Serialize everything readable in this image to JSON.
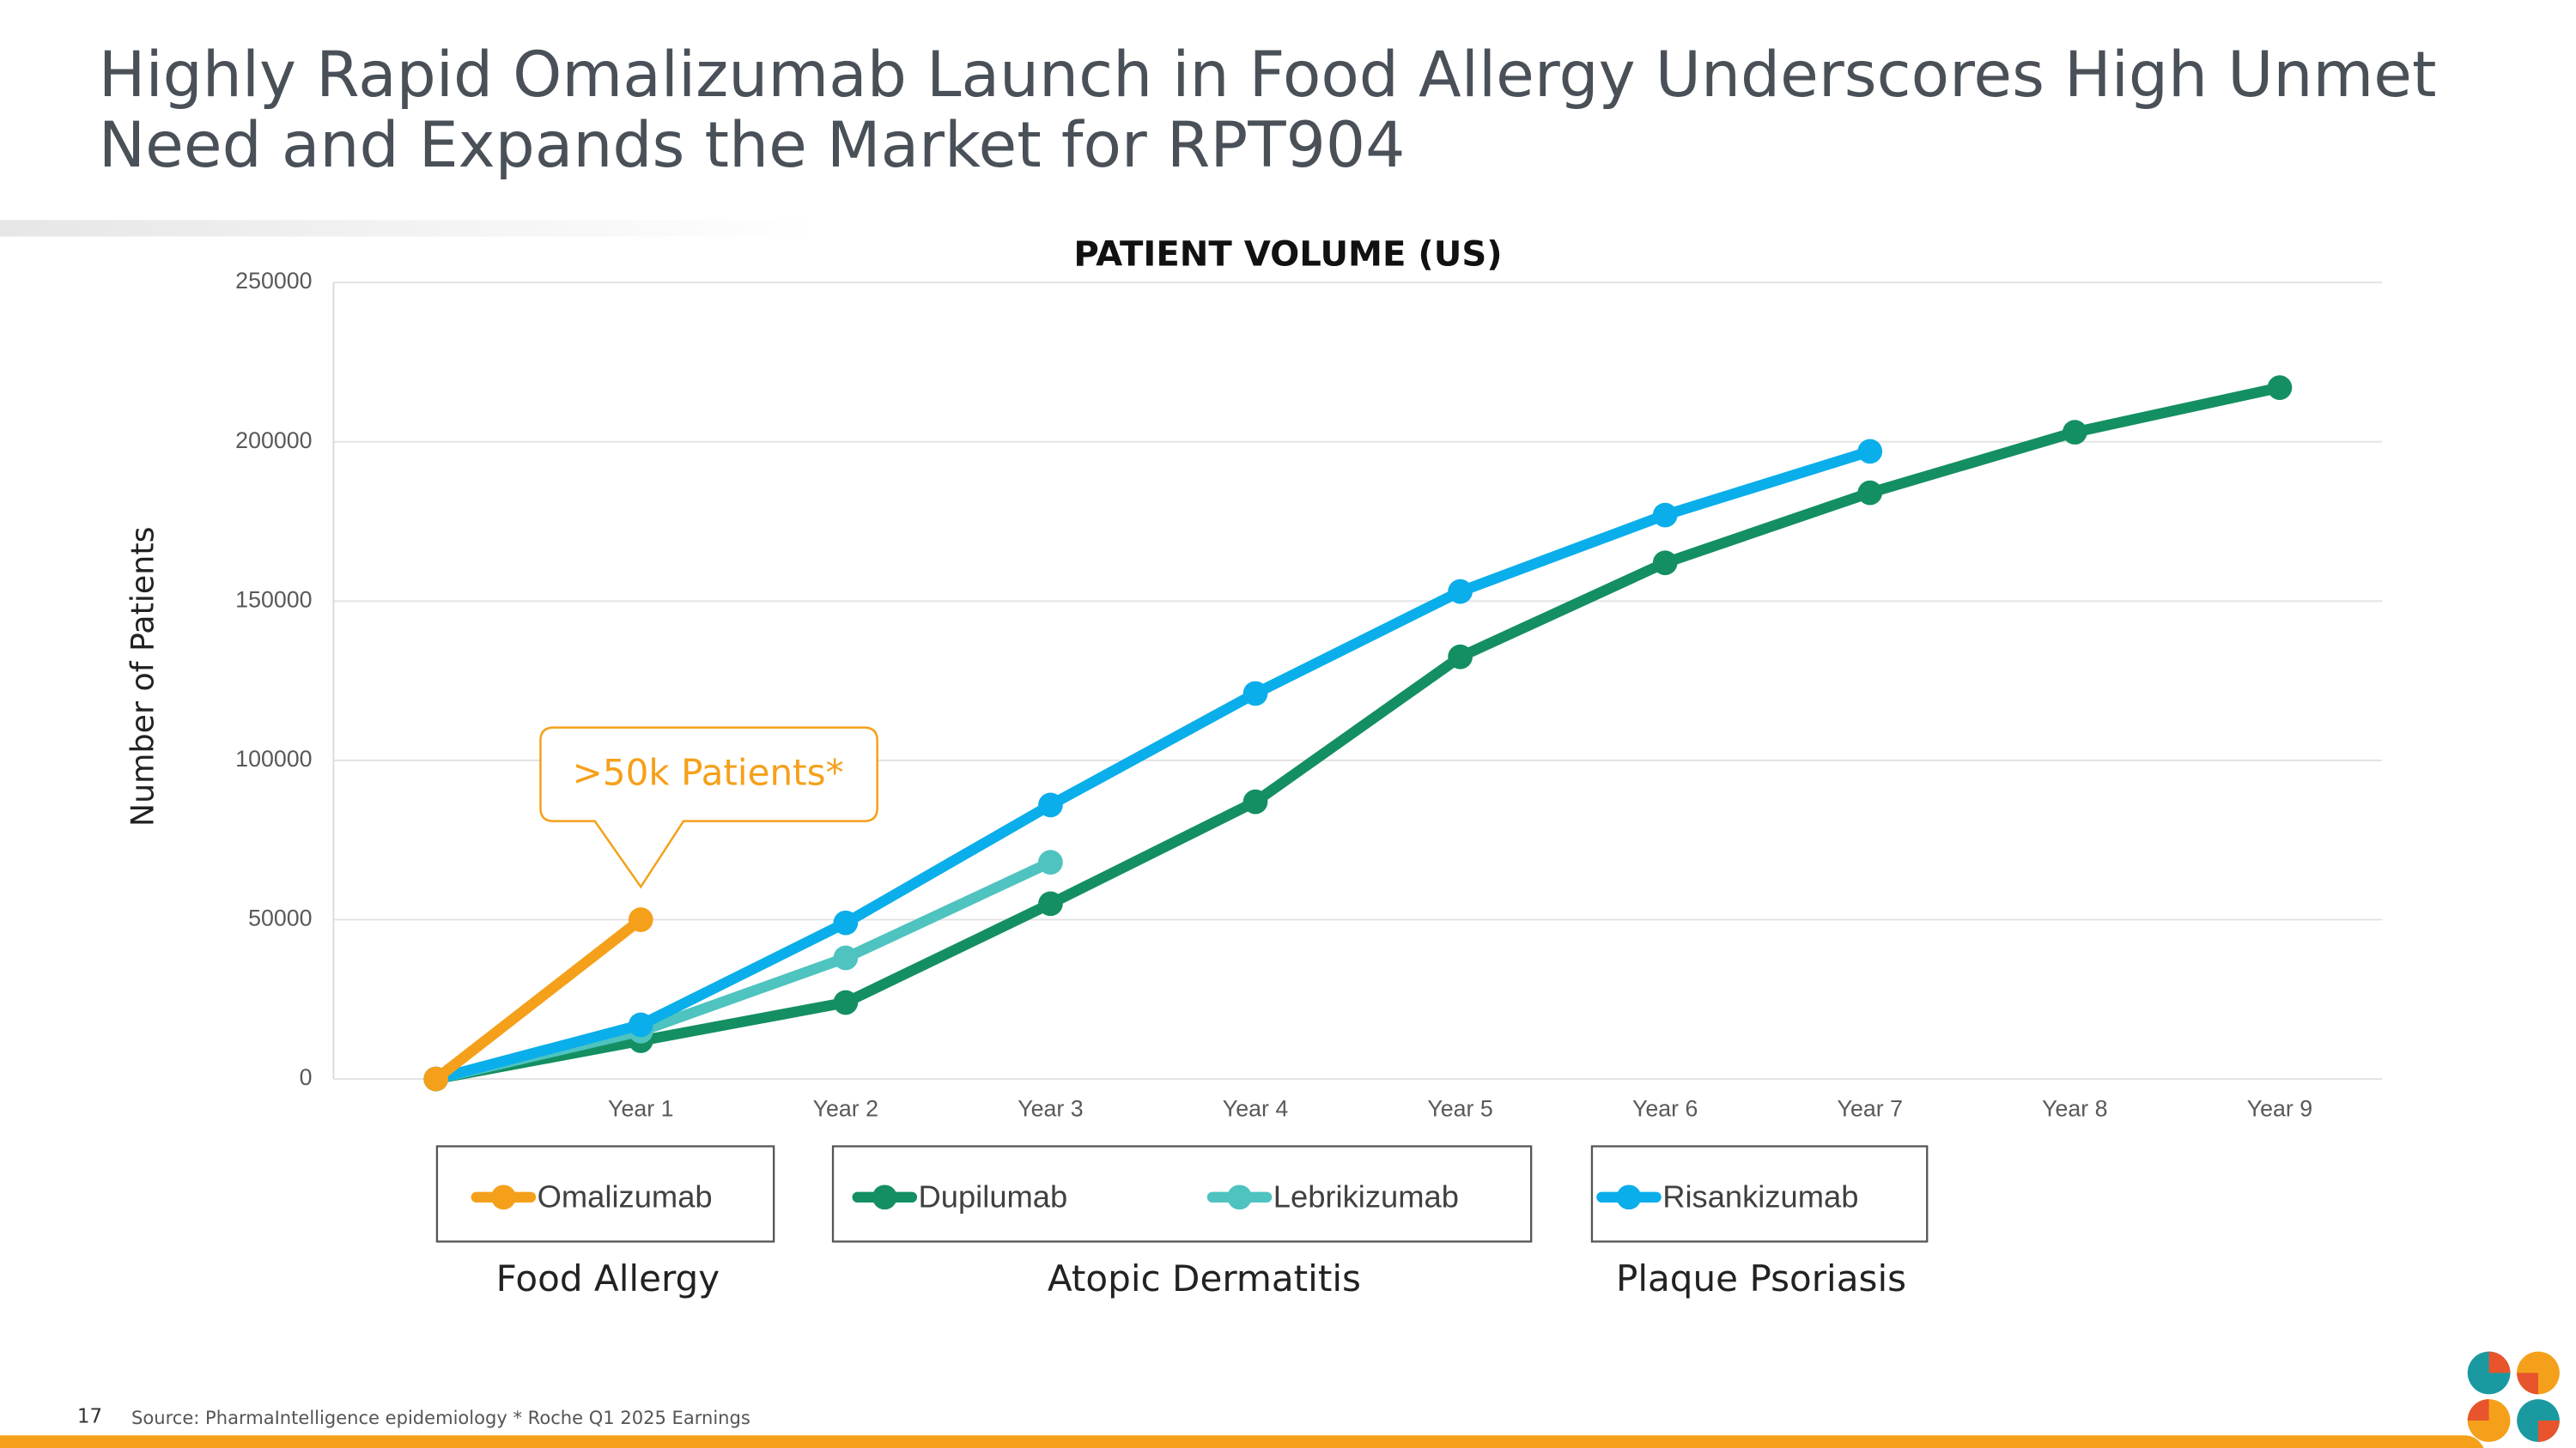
{
  "slide": {
    "title": [
      "Highly Rapid Omalizumab Launch in Food Allergy Underscores High Unmet",
      "Need and Expands the Market for RPT904"
    ],
    "page_number": "17",
    "source": "Source: PharmaIntelligence epidemiology  * Roche Q1 2025 Earnings"
  },
  "chart_data": {
    "type": "line",
    "title": "PATIENT VOLUME (US)",
    "y_label": "Number of Patients",
    "categories": [
      null,
      "Year 1",
      "Year 2",
      "Year 3",
      "Year 4",
      "Year 5",
      "Year 6",
      "Year 7",
      "Year 8",
      "Year 9"
    ],
    "series": [
      {
        "name": "Omalizumab",
        "color": "#f5a01a",
        "values": [
          0,
          50000,
          null,
          null,
          null,
          null,
          null,
          null,
          null,
          null
        ]
      },
      {
        "name": "Dupilumab",
        "color": "#148f62",
        "values": [
          0,
          12000,
          24000,
          55000,
          87000,
          132500,
          162000,
          184000,
          203000,
          217000
        ]
      },
      {
        "name": "Lebrikizumab",
        "color": "#4ec3bf",
        "values": [
          0,
          15000,
          38000,
          68000,
          null,
          null,
          null,
          null,
          null,
          null
        ]
      },
      {
        "name": "Risankizumab",
        "color": "#0aaeea",
        "values": [
          0,
          17000,
          49000,
          86000,
          121000,
          153000,
          177000,
          197000,
          null,
          null
        ]
      }
    ],
    "legend_groups": [
      "Food Allergy",
      "Atopic Dermatitis",
      "Plaque Psoriasis"
    ],
    "annotation": ">50k Patients*",
    "ylim": [
      0,
      250000
    ],
    "yticks": [
      0,
      50000,
      100000,
      150000,
      200000,
      250000
    ],
    "grid": true
  }
}
